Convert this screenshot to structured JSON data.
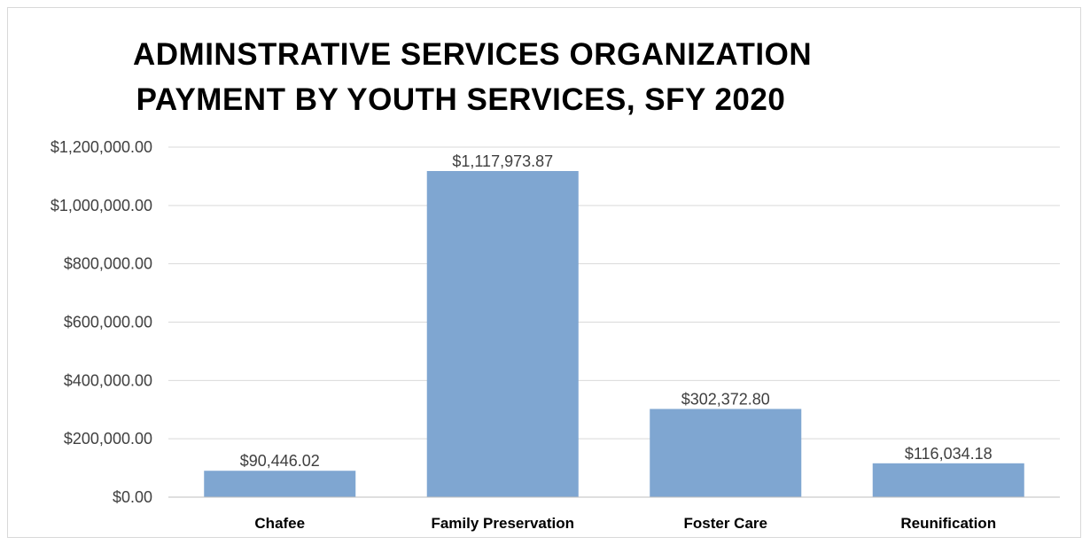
{
  "chart_data": {
    "type": "bar",
    "title_lines": [
      "ADMINSTRATIVE SERVICES ORGANIZATION",
      "PAYMENT BY YOUTH SERVICES, SFY 2020"
    ],
    "categories": [
      "Chafee",
      "Family Preservation",
      "Foster Care",
      "Reunification"
    ],
    "values": [
      90446.02,
      1117973.87,
      302372.8,
      116034.18
    ],
    "data_labels": [
      "$90,446.02",
      "$1,117,973.87",
      "$302,372.80",
      "$116,034.18"
    ],
    "xlabel": "",
    "ylabel": "",
    "ylim": [
      0,
      1200000
    ],
    "yticks": [
      0,
      200000,
      400000,
      600000,
      800000,
      1000000,
      1200000
    ],
    "ytick_labels": [
      "$0.00",
      "$200,000.00",
      "$400,000.00",
      "$600,000.00",
      "$800,000.00",
      "$1,000,000.00",
      "$1,200,000.00"
    ],
    "grid": true,
    "legend": "none",
    "colors": {
      "bar": "#7fa6d1",
      "grid": "#d9d9d9",
      "axis": "#bfbfbf"
    }
  }
}
